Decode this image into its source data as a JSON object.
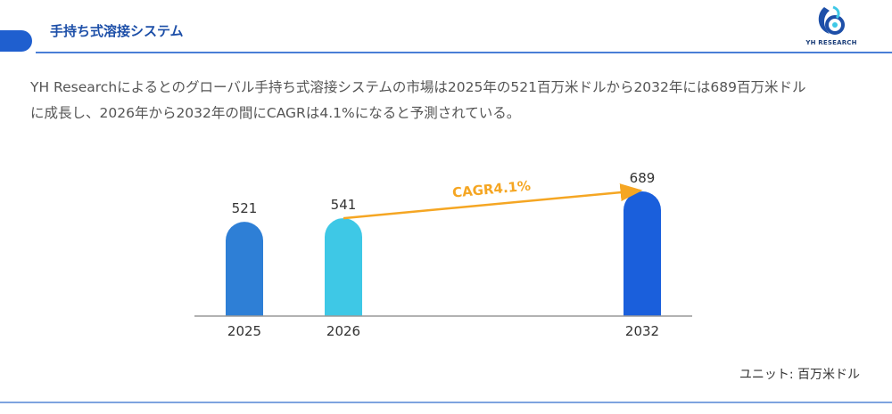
{
  "header": {
    "title": "手持ち式溶接システム"
  },
  "logo": {
    "text": "YH RESEARCH"
  },
  "description": {
    "line1": "YH Researchによるとのグローバル手持ち式溶接システムの市場は2025年の521百万米ドルから2032年には689百万米ドル",
    "line2": "に成長し、2026年から2032年の間にCAGRは4.1%になると予測されている。"
  },
  "chart_data": {
    "type": "bar",
    "categories": [
      "2025",
      "2026",
      "2032"
    ],
    "values": [
      521,
      541,
      689
    ],
    "colors": [
      "#2e7fd6",
      "#3ec8e6",
      "#1a5fdc"
    ],
    "annotation": {
      "text": "CAGR4.1%",
      "from": "2026",
      "to": "2032",
      "color": "#f5a623"
    },
    "ylim": [
      0,
      689
    ]
  },
  "unit": "ユニット: 百万米ドル",
  "colors": {
    "accent": "#1f5fcf",
    "title": "#1d4fa8",
    "axis": "#999999"
  }
}
